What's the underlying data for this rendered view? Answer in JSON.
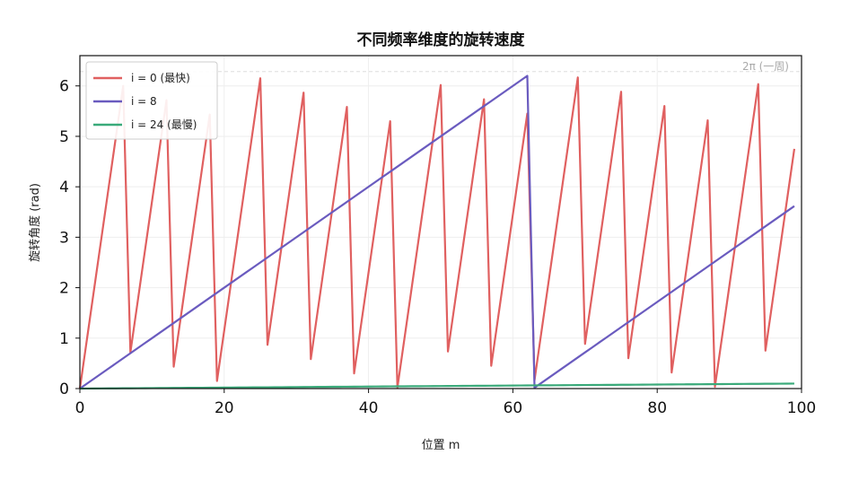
{
  "chart_data": {
    "type": "line",
    "title": "不同频率维度的旋转速度",
    "xlabel": "位置 m",
    "ylabel": "旋转角度 (rad)",
    "xlim": [
      0,
      100
    ],
    "ylim": [
      0,
      6.6
    ],
    "xticks": [
      0,
      20,
      40,
      60,
      80,
      100
    ],
    "yticks": [
      0,
      1,
      2,
      3,
      4,
      5,
      6
    ],
    "grid": true,
    "legend_position": "top-left",
    "annotation": {
      "text": "2π (一周)",
      "y": 6.2832
    },
    "series": [
      {
        "name": "i = 0 (最快)",
        "color": "#e06060",
        "rate": 1.0
      },
      {
        "name": "i = 8",
        "color": "#6a5bbf",
        "rate": 0.1
      },
      {
        "name": "i = 24 (最慢)",
        "color": "#3aaa7a",
        "rate": 0.001
      }
    ],
    "x_start": 0,
    "x_end": 99
  }
}
